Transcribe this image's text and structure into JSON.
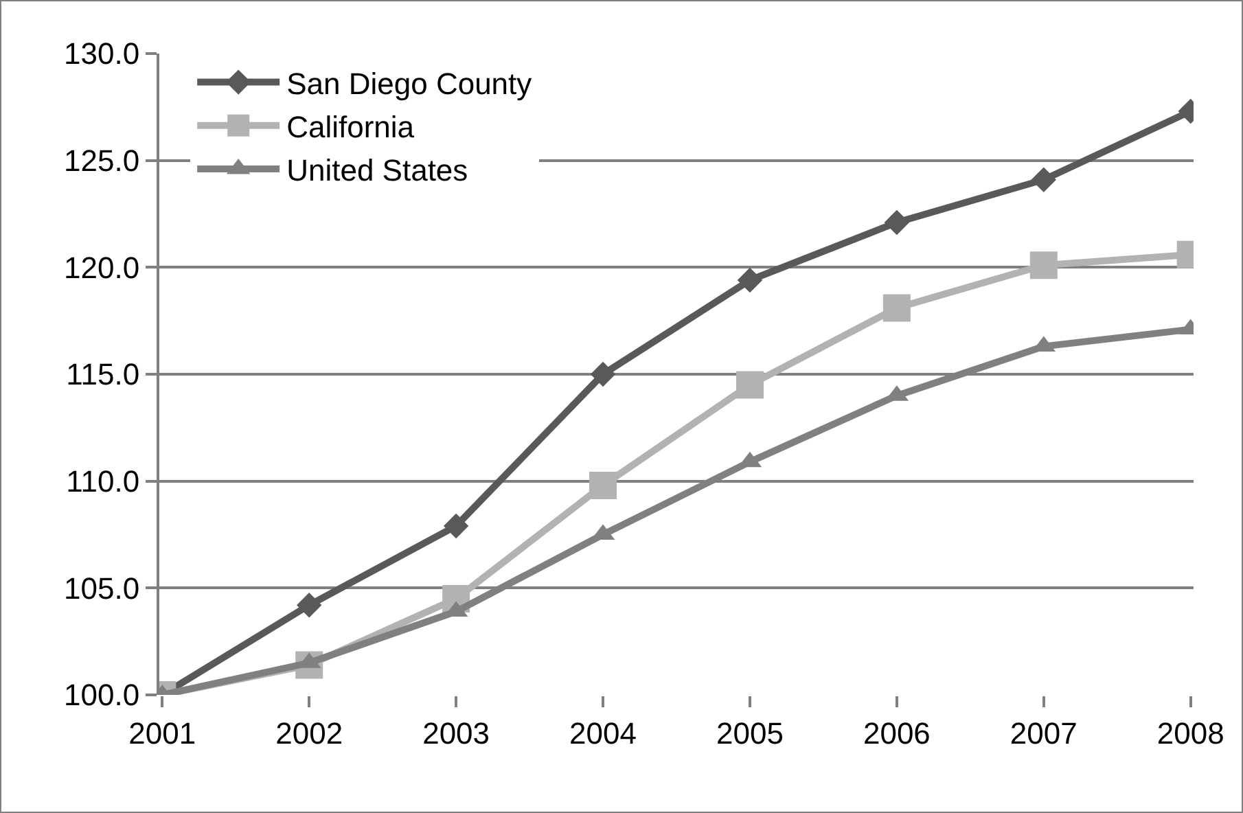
{
  "chart_data": {
    "type": "line",
    "categories": [
      "2001",
      "2002",
      "2003",
      "2004",
      "2005",
      "2006",
      "2007",
      "2008"
    ],
    "series": [
      {
        "name": "San Diego County",
        "color": "#595959",
        "marker": "diamond",
        "values": [
          100,
          104.2,
          107.9,
          115.0,
          119.4,
          122.1,
          124.1,
          127.3
        ]
      },
      {
        "name": "California",
        "color": "#b2b2b2",
        "marker": "square",
        "values": [
          100,
          101.4,
          104.5,
          109.8,
          114.5,
          118.1,
          120.1,
          120.6
        ]
      },
      {
        "name": "United States",
        "color": "#808080",
        "marker": "triangle",
        "values": [
          100,
          101.5,
          103.9,
          107.5,
          110.9,
          114.0,
          116.3,
          117.1
        ]
      }
    ],
    "ylim": [
      100,
      130
    ],
    "yticks": [
      {
        "value": 100,
        "label": "100.0"
      },
      {
        "value": 105,
        "label": "105.0"
      },
      {
        "value": 110,
        "label": "110.0"
      },
      {
        "value": 115,
        "label": "115.0"
      },
      {
        "value": 120,
        "label": "120.0"
      },
      {
        "value": 125,
        "label": "125.0"
      },
      {
        "value": 130,
        "label": "130.0"
      }
    ],
    "grid": "y",
    "legend": "top left",
    "line_style": "solid"
  }
}
